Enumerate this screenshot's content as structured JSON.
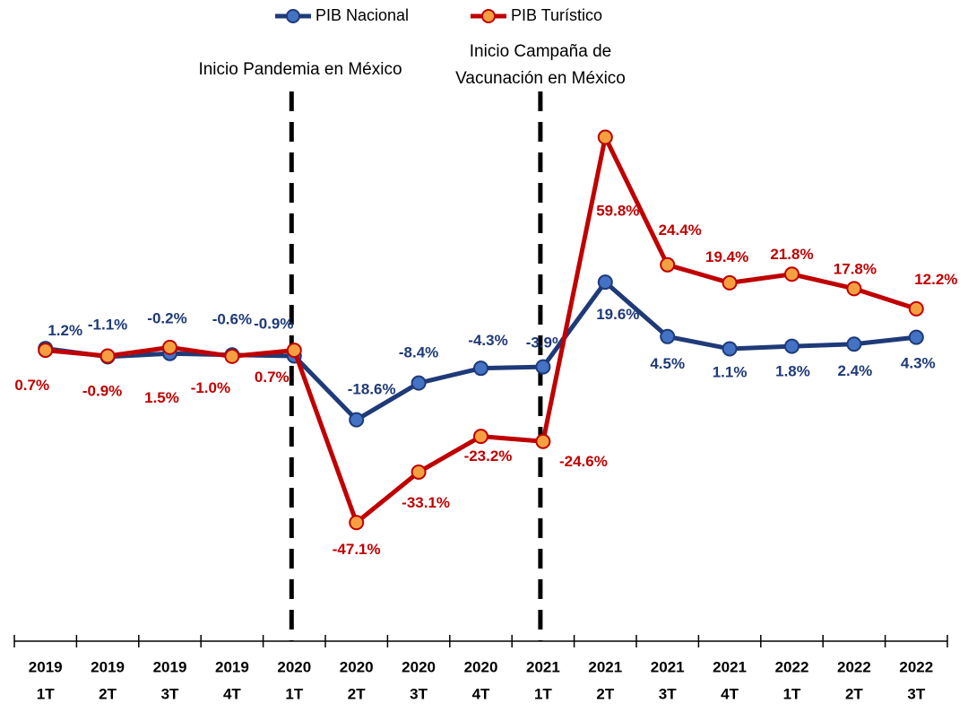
{
  "chart_data": {
    "type": "line",
    "categories": [
      [
        "2019",
        "1T"
      ],
      [
        "2019",
        "2T"
      ],
      [
        "2019",
        "3T"
      ],
      [
        "2019",
        "4T"
      ],
      [
        "2020",
        "1T"
      ],
      [
        "2020",
        "2T"
      ],
      [
        "2020",
        "3T"
      ],
      [
        "2020",
        "4T"
      ],
      [
        "2021",
        "1T"
      ],
      [
        "2021",
        "2T"
      ],
      [
        "2021",
        "3T"
      ],
      [
        "2021",
        "4T"
      ],
      [
        "2022",
        "1T"
      ],
      [
        "2022",
        "2T"
      ],
      [
        "2022",
        "3T"
      ]
    ],
    "series": [
      {
        "name": "PIB Nacional",
        "color": "#1f3a78",
        "marker_color": "#4472c4",
        "values": [
          1.2,
          -1.1,
          -0.2,
          -0.6,
          -0.9,
          -18.6,
          -8.4,
          -4.3,
          -3.9,
          19.6,
          4.5,
          1.1,
          1.8,
          2.4,
          4.3
        ],
        "value_labels": [
          "1.2%",
          "-1.1%",
          "-0.2%",
          "-0.6%",
          "-0.9%",
          "-18.6%",
          "-8.4%",
          "-4.3%",
          "-3.9%",
          "19.6%",
          "4.5%",
          "1.1%",
          "1.8%",
          "2.4%",
          "4.3%"
        ]
      },
      {
        "name": "PIB Turístico",
        "color": "#c00000",
        "marker_color": "#f5a040",
        "values": [
          0.7,
          -0.9,
          1.5,
          -1.0,
          0.7,
          -47.1,
          -33.1,
          -23.2,
          -24.6,
          59.8,
          24.4,
          19.4,
          21.8,
          17.8,
          12.2
        ],
        "value_labels": [
          "0.7%",
          "-0.9%",
          "1.5%",
          "-1.0%",
          "0.7%",
          "-47.1%",
          "-33.1%",
          "-23.2%",
          "-24.6%",
          "59.8%",
          "24.4%",
          "19.4%",
          "21.8%",
          "17.8%",
          "12.2%"
        ]
      }
    ],
    "annotations": [
      [
        "Inicio Pandemia en México"
      ],
      [
        "Inicio Campaña de",
        "Vacunación en México"
      ]
    ],
    "ylim": [
      -80,
      70
    ],
    "legend": "top"
  }
}
